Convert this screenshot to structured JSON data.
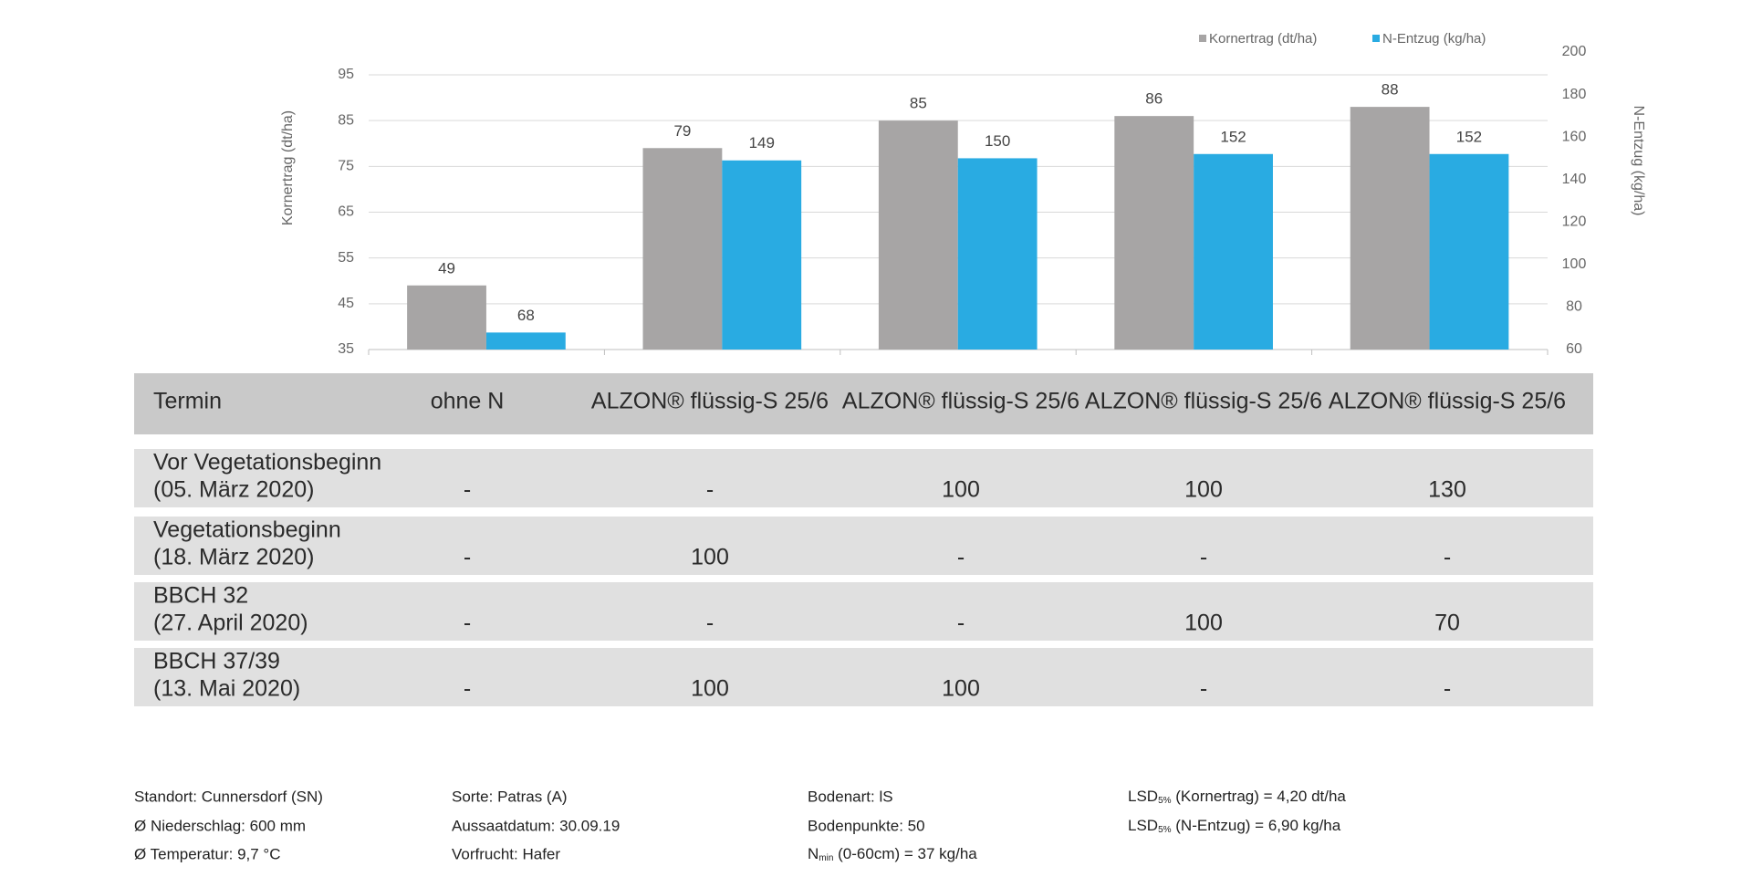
{
  "chart_data": {
    "type": "bar",
    "categories": [
      null,
      null,
      null,
      null,
      null
    ],
    "series": [
      {
        "name": "Kornertrag (dt/ha)",
        "color": "#a7a5a5",
        "values": [
          49,
          79,
          85,
          86,
          88
        ]
      },
      {
        "name": "N-Entzug (kg/ha)",
        "color": "#29abe2",
        "axis": "y2",
        "values": [
          68,
          149,
          150,
          152,
          152
        ]
      }
    ],
    "ylabel": "Kornertrag (dt/ha)",
    "y2label": "N-Entzug (kg/ha)",
    "ylim": [
      35,
      95
    ],
    "yticks": [
      35,
      45,
      55,
      65,
      75,
      85,
      95
    ],
    "y2lim": [
      60,
      200
    ],
    "y2ticks": [
      60,
      80,
      100,
      120,
      140,
      160,
      180,
      200
    ],
    "grid": true,
    "legend": "top-right"
  },
  "table": {
    "header": [
      "Termin",
      "ohne N",
      "ALZON® flüssig-S 25/6",
      "ALZON® flüssig-S 25/6",
      "ALZON® flüssig-S 25/6",
      "ALZON® flüssig-S 25/6"
    ],
    "rows": [
      {
        "label": [
          "Vor Vegetationsbeginn",
          "(05. März 2020)"
        ],
        "cells": [
          "-",
          "-",
          100,
          100,
          130
        ]
      },
      {
        "label": [
          "Vegetationsbeginn",
          "(18. März 2020)"
        ],
        "cells": [
          "-",
          100,
          "-",
          "-",
          "-"
        ]
      },
      {
        "label": [
          "BBCH 32",
          "(27. April 2020)"
        ],
        "cells": [
          "-",
          "-",
          "-",
          100,
          70
        ]
      },
      {
        "label": [
          "BBCH 37/39",
          "(13. Mai 2020)"
        ],
        "cells": [
          "-",
          100,
          100,
          "-",
          "-"
        ]
      }
    ]
  },
  "footer": {
    "columns": [
      [
        "Standort: Cunnersdorf (SN)",
        "Ø Niederschlag: 600 mm",
        "Ø Temperatur: 9,7 °C"
      ],
      [
        "Sorte: Patras (A)",
        "Aussaatdatum: 30.09.19",
        "Vorfrucht: Hafer"
      ],
      [
        "Bodenart: lS",
        "Bodenpunkte: 50",
        {
          "main": "N",
          "sub": "min",
          "rest": " (0-60cm) = 37 kg/ha"
        }
      ],
      [
        {
          "main": "LSD",
          "sub": "5%",
          "rest": " (Kornertrag) = 4,20 dt/ha"
        },
        {
          "main": "LSD",
          "sub": "5%",
          "rest": " (N-Entzug) = 6,90 kg/ha"
        }
      ]
    ]
  }
}
